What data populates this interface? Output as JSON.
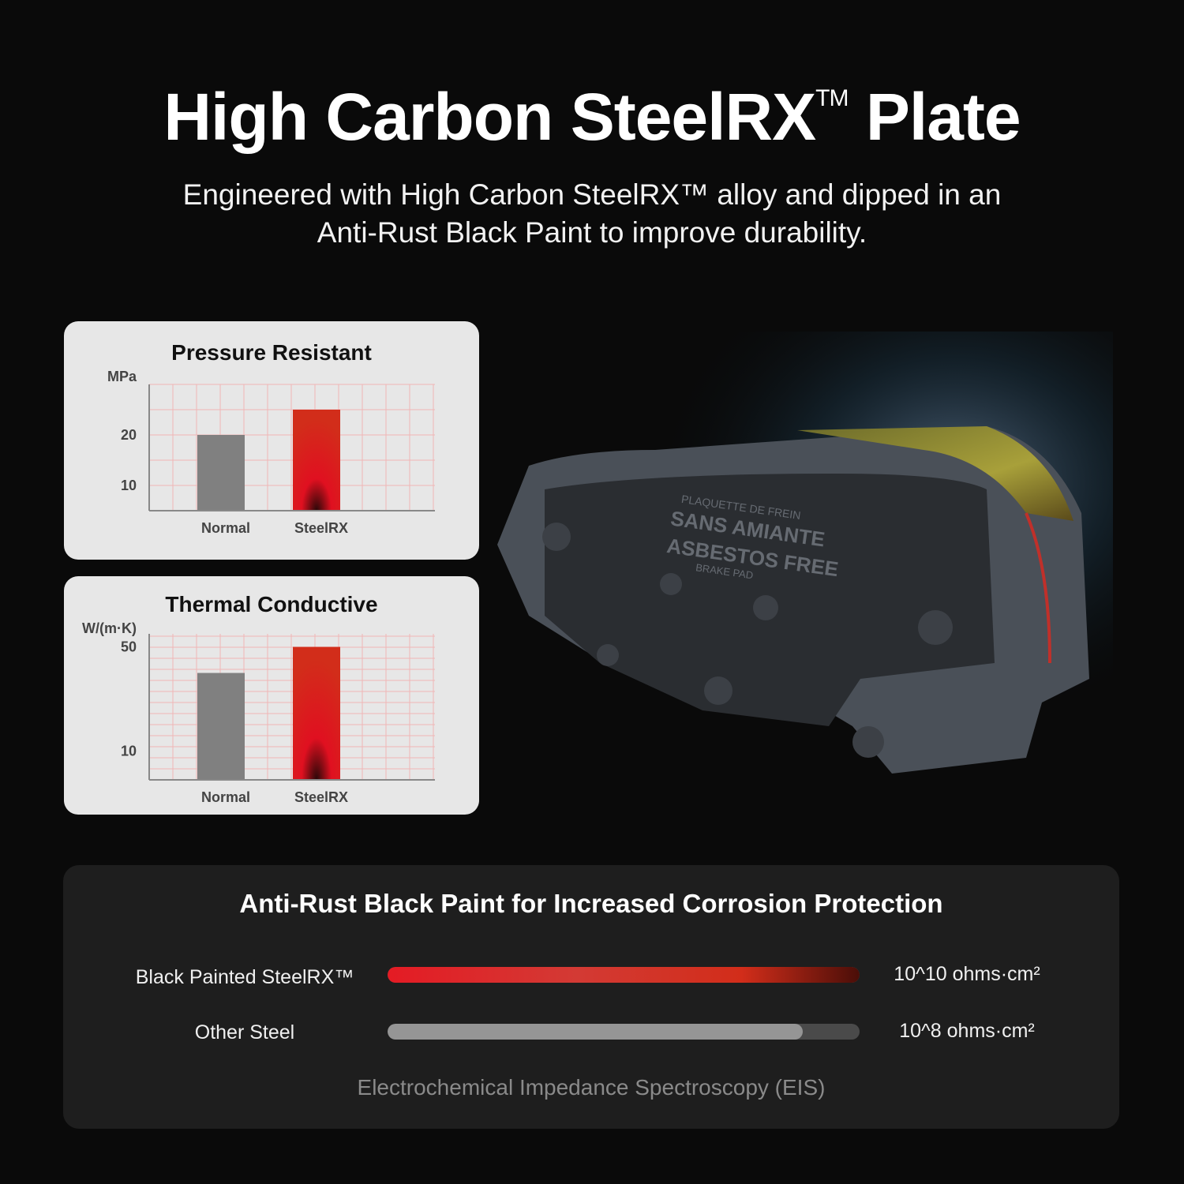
{
  "header": {
    "title": "High Carbon SteelRX",
    "title_mark": "TM",
    "title_end": "Plate",
    "subtitle_line1": "Engineered with High Carbon SteelRX™ alloy and dipped in an",
    "subtitle_line2": "Anti-Rust Black Paint to improve durability."
  },
  "colors": {
    "accent_red": "#d42b1c",
    "normal_grey": "#808080",
    "grid": "#f0b6b6",
    "card_bg": "#e7e7e7",
    "panel_bg": "#1e1e1e"
  },
  "chart_data": [
    {
      "type": "bar",
      "title": "Pressure Resistant",
      "ylabel": "MPa",
      "categories": [
        "Normal",
        "SteelRX"
      ],
      "values": [
        20,
        25
      ],
      "yticks": [
        10,
        20
      ],
      "ylim": [
        5,
        30
      ],
      "grid": true
    },
    {
      "type": "bar",
      "title": "Thermal Conductive",
      "ylabel": "W/(m·K)",
      "categories": [
        "Normal",
        "SteelRX"
      ],
      "values": [
        40,
        50
      ],
      "yticks": [
        10,
        50
      ],
      "ylim": [
        -1,
        55
      ],
      "grid": true
    }
  ],
  "corrosion": {
    "title": "Anti-Rust Black Paint for Increased Corrosion Protection",
    "rows": [
      {
        "label": "Black Painted SteelRX™",
        "value": "10^10 ohms·cm²",
        "fill_percent": 100
      },
      {
        "label": "Other Steel",
        "value": "10^8 ohms·cm²",
        "fill_percent": 88
      }
    ],
    "footnote": "Electrochemical Impedance Spectroscopy (EIS)"
  },
  "product": {
    "stamp_line1": "PLAQUETTE DE FREIN",
    "stamp_line2": "SANS AMIANTE",
    "stamp_line3": "ASBESTOS FREE",
    "stamp_line4": "BRAKE PAD"
  }
}
